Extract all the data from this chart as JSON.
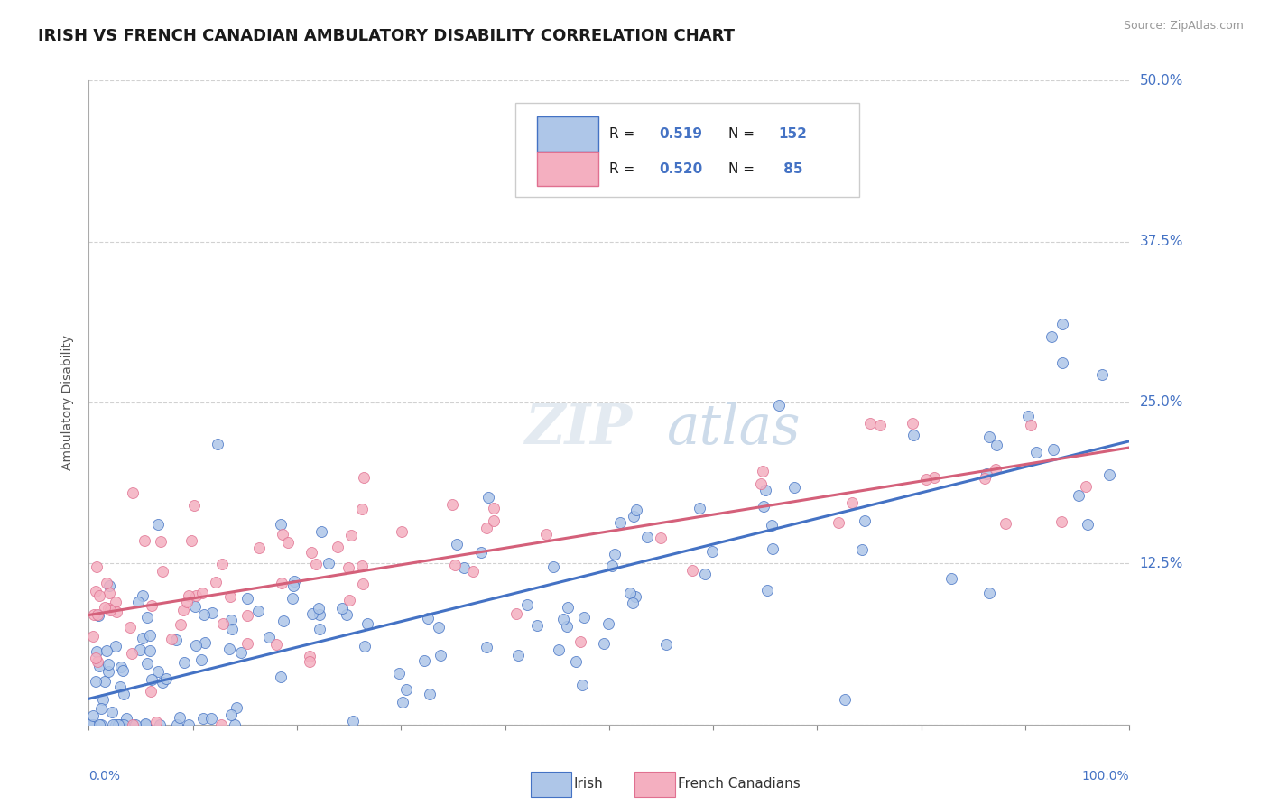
{
  "title": "IRISH VS FRENCH CANADIAN AMBULATORY DISABILITY CORRELATION CHART",
  "source": "Source: ZipAtlas.com",
  "ylabel": "Ambulatory Disability",
  "legend_irish_R": "0.519",
  "legend_irish_N": "152",
  "legend_french_R": "0.520",
  "legend_french_N": "85",
  "irish_fill_color": "#aec6e8",
  "irish_edge_color": "#4472c4",
  "french_fill_color": "#f4afc0",
  "french_edge_color": "#e07090",
  "line_irish_color": "#4472c4",
  "line_french_color": "#d4607a",
  "title_color": "#1a1a1a",
  "axis_tick_color": "#4472c4",
  "watermark_color": "#e0e8f0",
  "legend_text_color": "#1a1a1a",
  "legend_value_color": "#4472c4",
  "grid_color": "#cccccc",
  "irish_line_start_y": 2.0,
  "irish_line_end_y": 22.0,
  "french_line_start_y": 8.5,
  "french_line_end_y": 21.5,
  "ylim_min": 0,
  "ylim_max": 50,
  "xlim_min": 0,
  "xlim_max": 100,
  "y_tick_vals": [
    0,
    12.5,
    25.0,
    37.5,
    50.0
  ],
  "y_tick_labels": [
    "",
    "12.5%",
    "25.0%",
    "37.5%",
    "50.0%"
  ]
}
